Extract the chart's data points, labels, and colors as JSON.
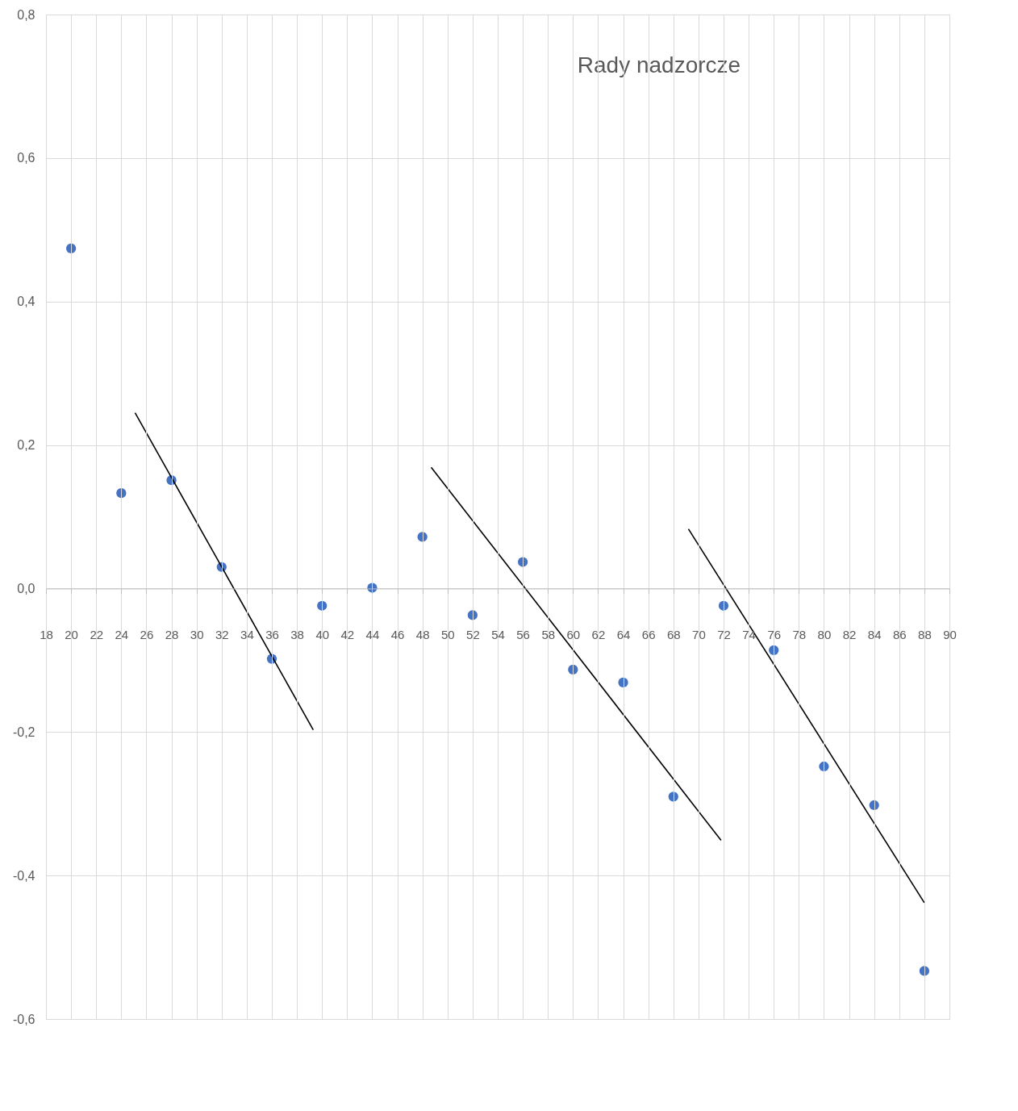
{
  "chart_data": {
    "type": "scatter",
    "title": "Rady nadzorcze",
    "grid": true,
    "xlim": [
      18,
      90
    ],
    "xticks": [
      18,
      20,
      22,
      24,
      26,
      28,
      30,
      32,
      34,
      36,
      38,
      40,
      42,
      44,
      46,
      48,
      50,
      52,
      54,
      56,
      58,
      60,
      62,
      64,
      66,
      68,
      70,
      72,
      74,
      76,
      78,
      80,
      82,
      84,
      86,
      88,
      90
    ],
    "ylim": [
      -0.6,
      0.8
    ],
    "yticks": [
      {
        "value": -0.6,
        "label": "-0,6"
      },
      {
        "value": -0.4,
        "label": "-0,4"
      },
      {
        "value": -0.2,
        "label": "-0,2"
      },
      {
        "value": 0,
        "label": "0,0"
      },
      {
        "value": 0.2,
        "label": "0,2"
      },
      {
        "value": 0.4,
        "label": "0,4"
      },
      {
        "value": 0.6,
        "label": "0,6"
      },
      {
        "value": 0.8,
        "label": "0,8"
      }
    ],
    "series": [
      {
        "marker": "circle",
        "color": "#4472c4",
        "x": [
          20,
          24,
          28,
          32,
          36,
          40,
          44,
          48,
          52,
          56,
          60,
          64,
          68,
          72,
          76,
          80,
          84,
          88
        ],
        "values": [
          0.474,
          0.133,
          0.151,
          0.03,
          -0.098,
          -0.024,
          0.001,
          0.072,
          -0.037,
          0.037,
          -0.113,
          -0.131,
          -0.29,
          -0.024,
          -0.086,
          -0.248,
          -0.302,
          -0.533
        ]
      },
      {
        "type": "line",
        "color": "#000000",
        "x": [
          25.1,
          39.3
        ],
        "values": [
          0.245,
          -0.197
        ]
      },
      {
        "type": "line",
        "color": "#000000",
        "x": [
          48.7,
          71.8
        ],
        "values": [
          0.169,
          -0.351
        ]
      },
      {
        "type": "line",
        "color": "#000000",
        "x": [
          69.2,
          88.0
        ],
        "values": [
          0.083,
          -0.438
        ]
      }
    ]
  }
}
